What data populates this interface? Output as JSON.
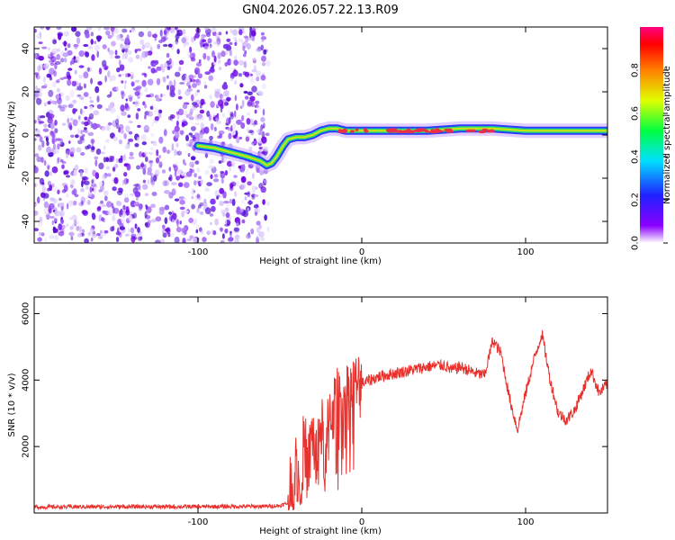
{
  "title": "GN04.2026.057.22.13.R09",
  "colors": {
    "snr_line": "#e8302c",
    "speckle": "#7a1fe0",
    "ridge": "#e8304a"
  },
  "chart_data": [
    {
      "type": "heatmap",
      "xlabel": "Height of straight line (km)",
      "ylabel": "Frequency (Hz)",
      "xlim": [
        -200,
        150
      ],
      "ylim": [
        -50,
        50
      ],
      "xticks": [
        -100,
        0,
        100
      ],
      "yticks": [
        -40,
        -20,
        0,
        20,
        40
      ],
      "colorbar": {
        "label": "Normalized spectral amplitude",
        "range": [
          0,
          1
        ],
        "ticks": [
          "0.0",
          "0.2",
          "0.4",
          "0.6",
          "0.8"
        ],
        "colormap": "rainbow (purple→blue→cyan→green→yellow→red→magenta)"
      },
      "noise_region": {
        "x": [
          -200,
          -57
        ]
      },
      "ridge": {
        "x": [
          -100,
          -90,
          -80,
          -70,
          -62,
          -58,
          -55,
          -52,
          -48,
          -45,
          -40,
          -35,
          -30,
          -25,
          -20,
          -15,
          -10,
          0,
          20,
          40,
          60,
          80,
          100,
          120,
          150
        ],
        "y": [
          -5,
          -6,
          -8,
          -10,
          -12,
          -14,
          -13,
          -10,
          -5,
          -2,
          -1,
          -1,
          0,
          2,
          3,
          3,
          2,
          2,
          2,
          2,
          3,
          3,
          2,
          2,
          2
        ]
      }
    },
    {
      "type": "line",
      "xlabel": "Height of straight line (km)",
      "ylabel": "SNR (10 * v/v)",
      "xlim": [
        -200,
        150
      ],
      "ylim": [
        0,
        6500
      ],
      "xticks": [
        -100,
        0,
        100
      ],
      "yticks": [
        2000,
        4000,
        6000
      ],
      "x": [
        -200,
        -150,
        -100,
        -60,
        -50,
        -45,
        -40,
        -38,
        -35,
        -33,
        -30,
        -28,
        -25,
        -22,
        -20,
        -15,
        -10,
        -5,
        0,
        5,
        10,
        20,
        30,
        40,
        50,
        55,
        60,
        65,
        70,
        75,
        80,
        85,
        90,
        95,
        100,
        105,
        110,
        115,
        120,
        125,
        130,
        135,
        140,
        145,
        150
      ],
      "y": [
        180,
        190,
        190,
        200,
        220,
        300,
        1500,
        800,
        2200,
        1200,
        2500,
        1500,
        2700,
        1400,
        3000,
        3300,
        3500,
        3700,
        3900,
        4000,
        4100,
        4200,
        4300,
        4400,
        4450,
        4300,
        4400,
        4300,
        4200,
        4150,
        5200,
        4800,
        3500,
        2500,
        3600,
        4600,
        5400,
        4000,
        3000,
        2800,
        3100,
        3700,
        4300,
        3600,
        3900
      ]
    }
  ]
}
